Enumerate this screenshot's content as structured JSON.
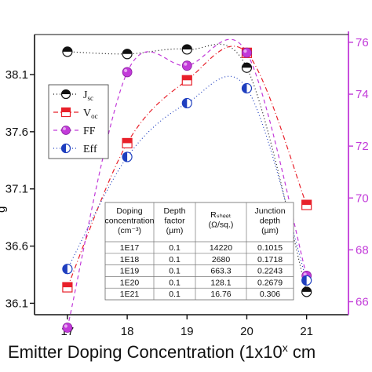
{
  "chart_data": {
    "type": "line",
    "x": [
      17,
      18,
      19,
      20,
      21
    ],
    "x_ticks": [
      "17",
      "18",
      "19",
      "20",
      "21"
    ],
    "xlabel": "Emitter Doping Concentration (1x10",
    "xlabel_sup": "x",
    "xlabel_tail": " cm",
    "y_left": {
      "ticks": [
        "36.1",
        "36.6",
        "37.1",
        "37.6",
        "38.1"
      ],
      "ylim": [
        36.0,
        38.45
      ]
    },
    "y_right": {
      "ticks": [
        "66",
        "68",
        "70",
        "72",
        "74",
        "76"
      ],
      "ylim": [
        65.5,
        76.3
      ]
    },
    "series": [
      {
        "name": "J",
        "sub": "sc",
        "axis": "left",
        "color": "#111111",
        "marker": "circle-top",
        "dash": "1,3",
        "values": [
          38.3,
          38.28,
          38.32,
          38.16,
          36.2
        ]
      },
      {
        "name": "V",
        "sub": "oc",
        "axis": "left",
        "color": "#e8202a",
        "marker": "square-top",
        "dash": "6,3,1,3",
        "values": [
          36.24,
          37.5,
          38.05,
          38.29,
          36.96
        ]
      },
      {
        "name": "FF",
        "sub": "",
        "axis": "right",
        "color": "#c23ad9",
        "marker": "circle-filled",
        "dash": "5,4",
        "values": [
          65.0,
          74.85,
          75.1,
          75.6,
          67.0
        ]
      },
      {
        "name": "Eff",
        "sub": "",
        "axis": "left",
        "color": "#1f3fbf",
        "marker": "circle-left",
        "dash": "1,3",
        "values": [
          36.4,
          37.38,
          37.85,
          37.98,
          36.3
        ]
      }
    ],
    "table": {
      "headers": [
        [
          "Doping",
          "concentration",
          "(cm⁻³)"
        ],
        [
          "Depth",
          "factor",
          "(µm)"
        ],
        [
          "Rₛₕₑₑₜ",
          "(Ω/sq.)"
        ],
        [
          "Junction",
          "depth",
          "(µm)"
        ]
      ],
      "rows": [
        [
          "1E17",
          "0.1",
          "14220",
          "0.1015"
        ],
        [
          "1E18",
          "0.1",
          "2680",
          "0.1718"
        ],
        [
          "1E19",
          "0.1",
          "663.3",
          "0.2243"
        ],
        [
          "1E20",
          "0.1",
          "128.1",
          "0.2679"
        ],
        [
          "1E21",
          "0.1",
          "16.76",
          "0.306"
        ]
      ]
    },
    "left_axis_edge_label": "g"
  }
}
